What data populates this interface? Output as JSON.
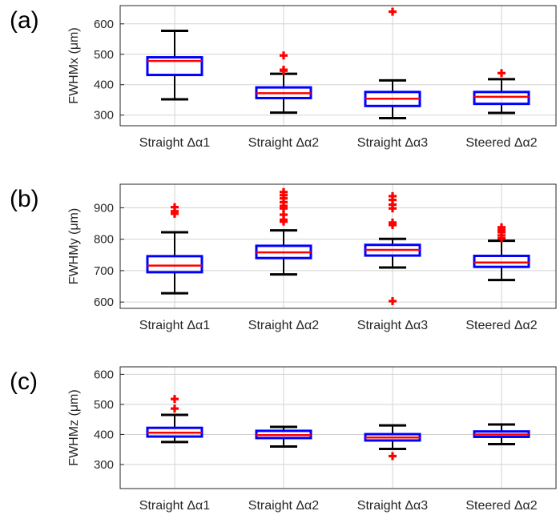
{
  "colors": {
    "box": "#0000ff",
    "median": "#ff0000",
    "whisker": "#000000",
    "outlier": "#ff0000",
    "grid": "#d3d3d3",
    "axes": "#262626"
  },
  "chart_data": [
    {
      "type": "box",
      "panel_label": "(a)",
      "ylabel": "FWHMx (μm)",
      "ylim": [
        265,
        660
      ],
      "yticks": [
        300,
        400,
        500,
        600
      ],
      "grid": true,
      "categories": [
        "Straight Δα1",
        "Straight Δα2",
        "Straight Δα3",
        "Steered Δα2"
      ],
      "boxes": [
        {
          "whisker_low": 352,
          "q1": 432,
          "median": 478,
          "q3": 490,
          "whisker_high": 577,
          "outliers": []
        },
        {
          "whisker_low": 308,
          "q1": 356,
          "median": 372,
          "q3": 391,
          "whisker_high": 436,
          "outliers": [
            446,
            449,
            496
          ]
        },
        {
          "whisker_low": 290,
          "q1": 330,
          "median": 354,
          "q3": 376,
          "whisker_high": 414,
          "outliers": [
            640
          ]
        },
        {
          "whisker_low": 307,
          "q1": 337,
          "median": 360,
          "q3": 376,
          "whisker_high": 418,
          "outliers": [
            438
          ]
        }
      ]
    },
    {
      "type": "box",
      "panel_label": "(b)",
      "ylabel": "FWHMy (μm)",
      "ylim": [
        580,
        975
      ],
      "yticks": [
        600,
        700,
        800,
        900
      ],
      "grid": true,
      "categories": [
        "Straight Δα1",
        "Straight Δα2",
        "Straight Δα3",
        "Steered Δα2"
      ],
      "boxes": [
        {
          "whisker_low": 628,
          "q1": 695,
          "median": 716,
          "q3": 746,
          "whisker_high": 822,
          "outliers": [
            881,
            889,
            902
          ]
        },
        {
          "whisker_low": 688,
          "q1": 740,
          "median": 758,
          "q3": 779,
          "whisker_high": 828,
          "outliers": [
            856,
            862,
            878,
            898,
            906,
            918,
            930,
            940,
            950
          ]
        },
        {
          "whisker_low": 710,
          "q1": 748,
          "median": 766,
          "q3": 782,
          "whisker_high": 801,
          "outliers": [
            603,
            845,
            853,
            898,
            910,
            925,
            937
          ]
        },
        {
          "whisker_low": 670,
          "q1": 712,
          "median": 726,
          "q3": 747,
          "whisker_high": 795,
          "outliers": [
            803,
            812,
            822,
            830,
            838
          ]
        }
      ]
    },
    {
      "type": "box",
      "panel_label": "(c)",
      "ylabel": "FWHMz (μm)",
      "ylim": [
        220,
        625
      ],
      "yticks": [
        300,
        400,
        500,
        600
      ],
      "grid": true,
      "categories": [
        "Straight Δα1",
        "Straight Δα2",
        "Straight Δα3",
        "Steered Δα2"
      ],
      "boxes": [
        {
          "whisker_low": 375,
          "q1": 393,
          "median": 406,
          "q3": 422,
          "whisker_high": 465,
          "outliers": [
            486,
            518
          ]
        },
        {
          "whisker_low": 360,
          "q1": 388,
          "median": 398,
          "q3": 412,
          "whisker_high": 425,
          "outliers": []
        },
        {
          "whisker_low": 352,
          "q1": 380,
          "median": 390,
          "q3": 401,
          "whisker_high": 430,
          "outliers": [
            328
          ]
        },
        {
          "whisker_low": 368,
          "q1": 392,
          "median": 400,
          "q3": 410,
          "whisker_high": 433,
          "outliers": []
        }
      ]
    }
  ]
}
